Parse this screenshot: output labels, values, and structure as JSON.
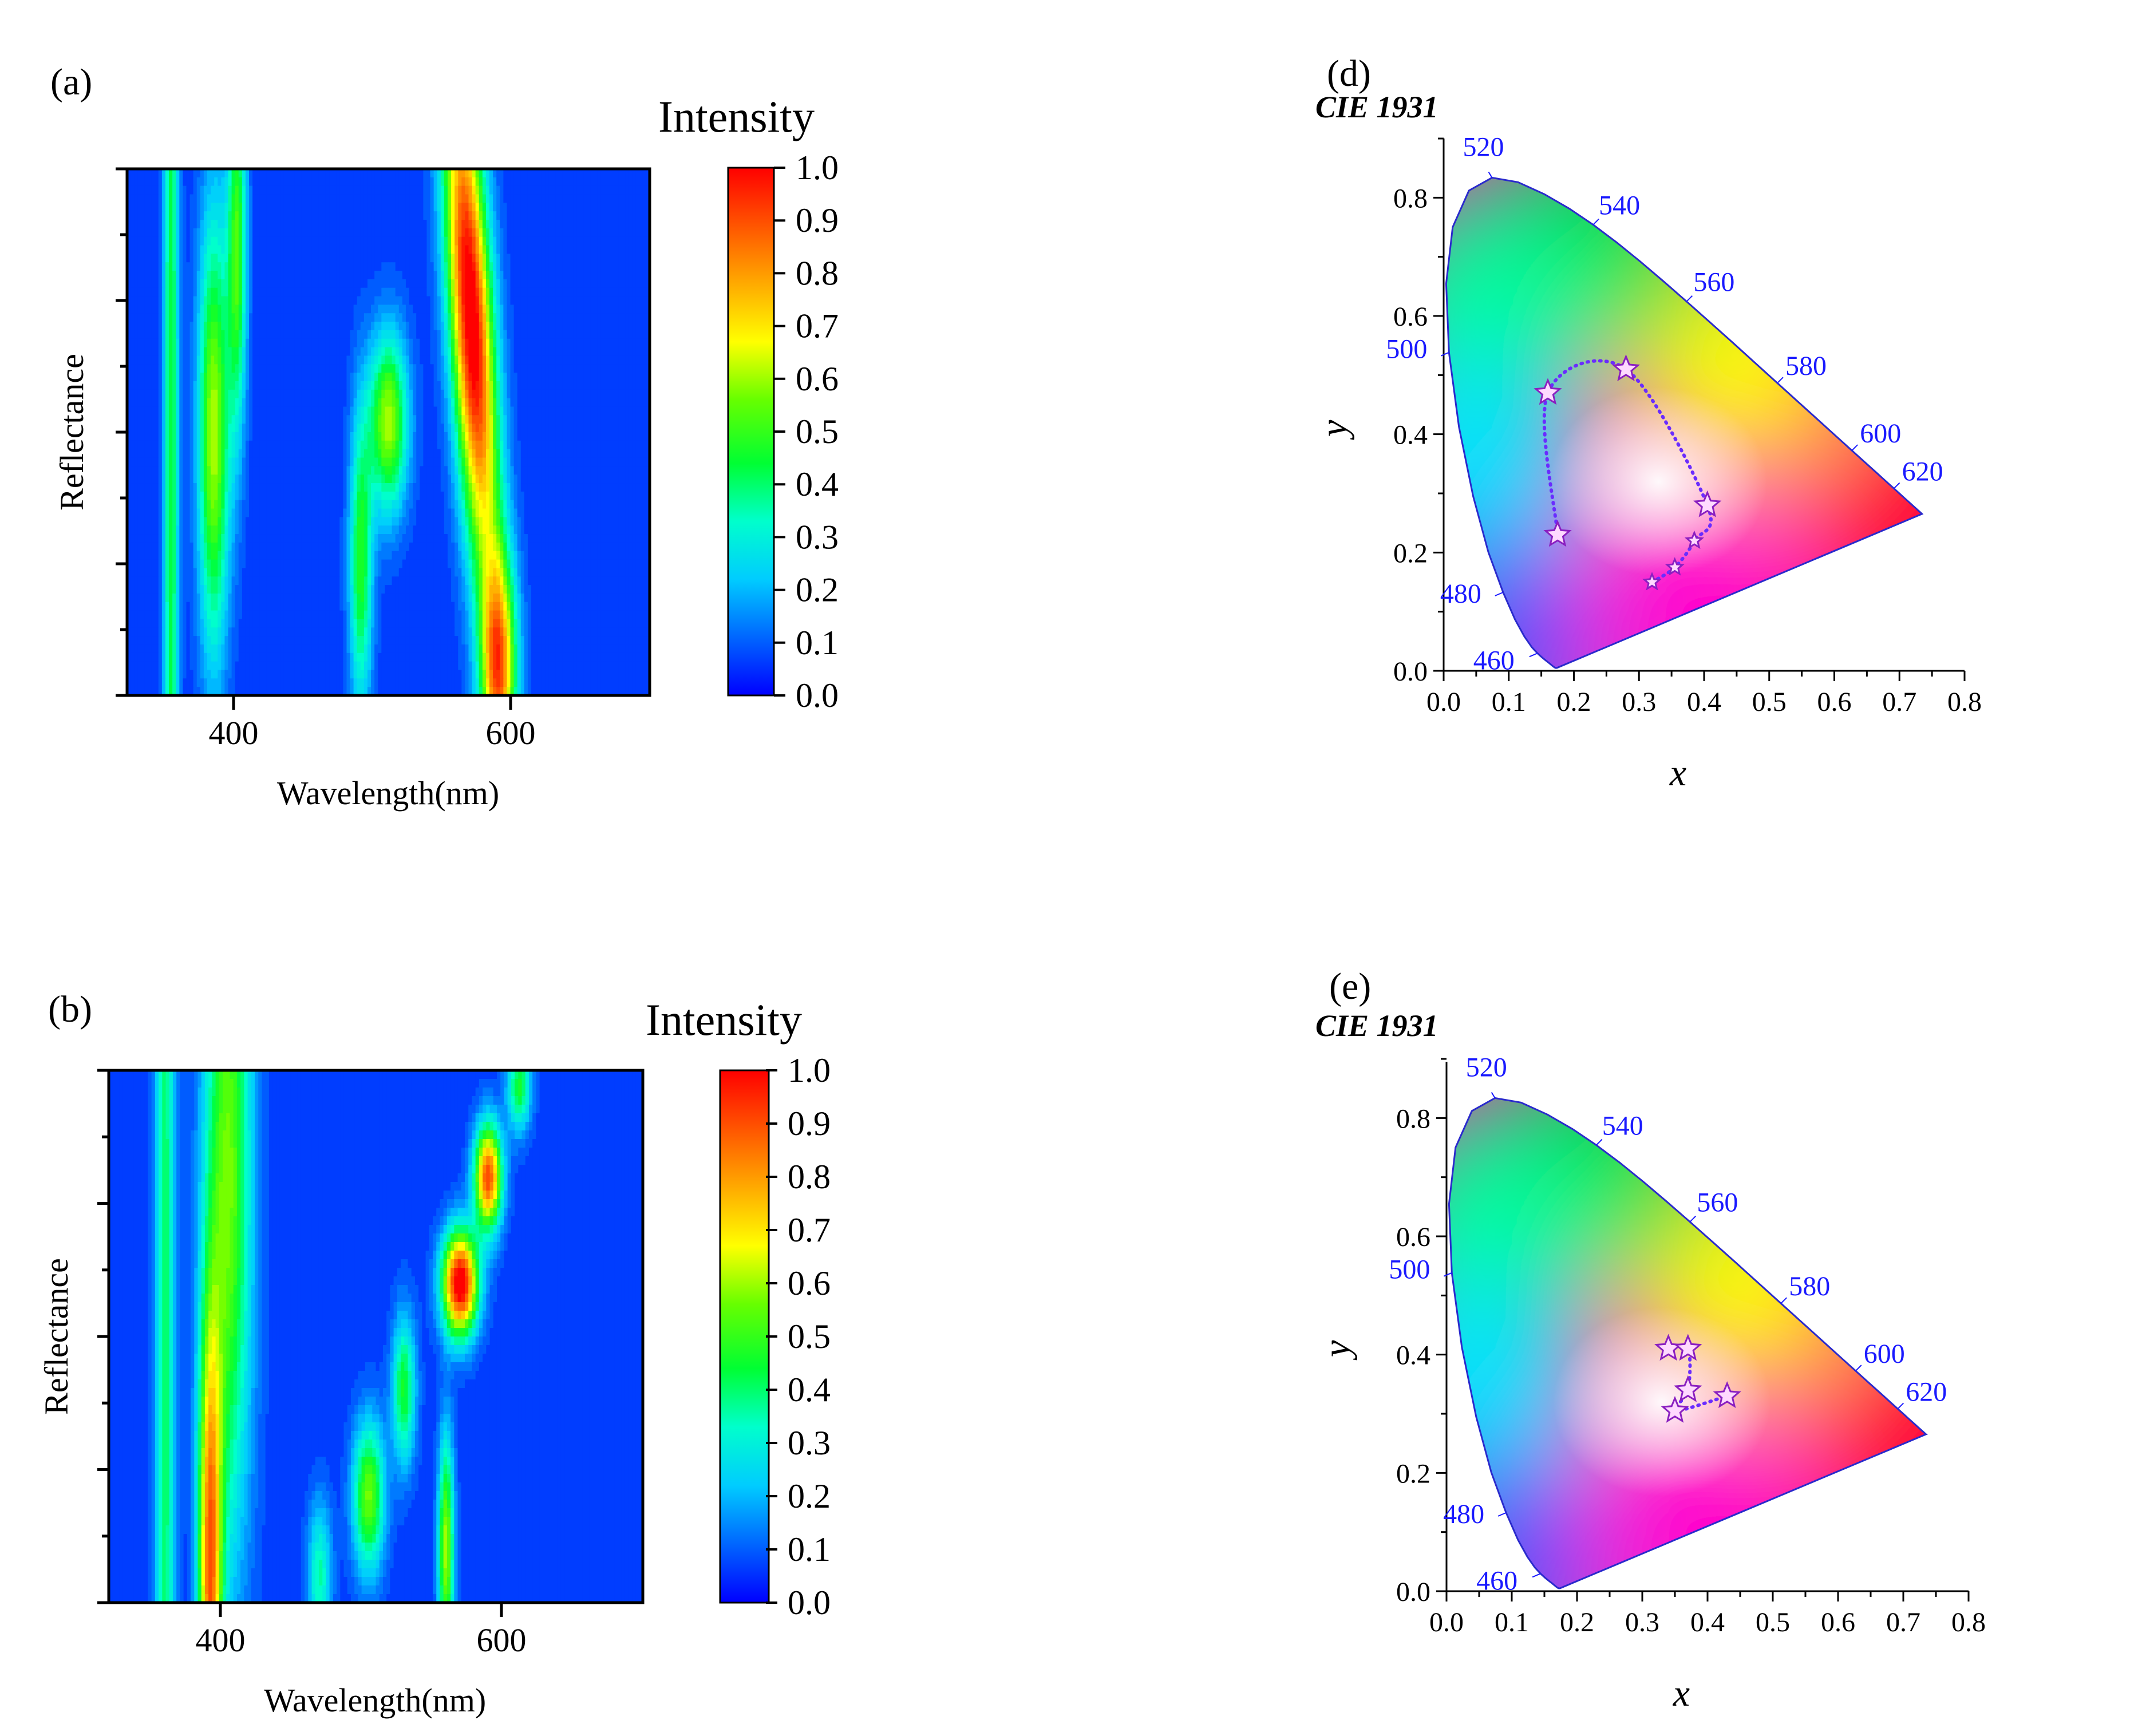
{
  "colors": {
    "map_stops": [
      "#0000ff",
      "#0066ff",
      "#00ccff",
      "#00ffcc",
      "#00ff33",
      "#66ff00",
      "#ffff00",
      "#ffaa00",
      "#ff5500",
      "#ff0000"
    ],
    "wavelength_label": "#1a1aff",
    "locus_path": "#6a2cff",
    "star_fill": "#ffd9ff",
    "axis": "#000000"
  },
  "chart_data": [
    {
      "type": "heatmap",
      "panel": "(a)",
      "xlabel": "Wavelength(nm)",
      "ylabel": "Reflectance",
      "xlim": [
        320,
        700
      ],
      "xticks": [
        "400",
        "600"
      ],
      "colorbar": {
        "title": "Intensity",
        "min": 0.0,
        "max": 1.0,
        "ticks": [
          "0.0",
          "0.1",
          "0.2",
          "0.3",
          "0.4",
          "0.5",
          "0.6",
          "0.7",
          "0.8",
          "0.9",
          "1.0"
        ]
      },
      "features": [
        {
          "wavelength": 352,
          "peak": 0.38,
          "width": 4,
          "y_center": 0.5,
          "y_spread": 2.0
        },
        {
          "wavelength": 383,
          "peak": 0.55,
          "width": 8,
          "y_center": 0.5,
          "y_spread": 0.3
        },
        {
          "wavelength": 400,
          "peak": 0.45,
          "width": 5,
          "y_center": 0.85,
          "y_spread": 0.25
        },
        {
          "wavelength": 490,
          "peak": 0.42,
          "width": 6,
          "y_center": 0.25,
          "y_spread": 0.2
        },
        {
          "wavelength": 510,
          "peak": 0.55,
          "width": 10,
          "y_center": 0.52,
          "y_spread": 0.12
        },
        {
          "wavelength": 575,
          "peak": 1.0,
          "width": 11,
          "y_center": 0.72,
          "y_spread": 0.35,
          "slope": -22
        },
        {
          "wavelength": 590,
          "peak": 0.75,
          "width": 9,
          "y_center": 0.05,
          "y_spread": 0.15
        }
      ]
    },
    {
      "type": "heatmap",
      "panel": "(b)",
      "xlabel": "Wavelength(nm)",
      "ylabel": "Reflectance",
      "xlim": [
        320,
        700
      ],
      "xticks": [
        "400",
        "600"
      ],
      "colorbar": {
        "title": "Intensity",
        "min": 0.0,
        "max": 1.0,
        "ticks": [
          "0.0",
          "0.1",
          "0.2",
          "0.3",
          "0.4",
          "0.5",
          "0.6",
          "0.7",
          "0.8",
          "0.9",
          "1.0"
        ]
      },
      "features": [
        {
          "wavelength": 360,
          "peak": 0.35,
          "width": 5,
          "y_center": 0.5,
          "y_spread": 2.0
        },
        {
          "wavelength": 392,
          "peak": 0.75,
          "width": 6,
          "y_center": 0.05,
          "y_spread": 0.35
        },
        {
          "wavelength": 405,
          "peak": 0.5,
          "width": 12,
          "y_center": 0.8,
          "y_spread": 0.5
        },
        {
          "wavelength": 470,
          "peak": 0.3,
          "width": 6,
          "y_center": 0.05,
          "y_spread": 0.1
        },
        {
          "wavelength": 505,
          "peak": 0.5,
          "width": 8,
          "y_center": 0.2,
          "y_spread": 0.1
        },
        {
          "wavelength": 530,
          "peak": 0.4,
          "width": 6,
          "y_center": 0.4,
          "y_spread": 0.1
        },
        {
          "wavelength": 560,
          "peak": 0.55,
          "width": 4,
          "y_center": 0.1,
          "y_spread": 0.15
        },
        {
          "wavelength": 570,
          "peak": 1.0,
          "width": 9,
          "y_center": 0.6,
          "y_spread": 0.07
        },
        {
          "wavelength": 590,
          "peak": 0.85,
          "width": 7,
          "y_center": 0.8,
          "y_spread": 0.07
        },
        {
          "wavelength": 612,
          "peak": 0.4,
          "width": 6,
          "y_center": 0.97,
          "y_spread": 0.06
        }
      ]
    },
    {
      "type": "scatter",
      "panel": "(d)",
      "subtitle": "CIE 1931",
      "xlabel": "x",
      "ylabel": "y",
      "xlim": [
        0.0,
        0.8
      ],
      "ylim": [
        0.0,
        0.9
      ],
      "xticks": [
        "0.0",
        "0.1",
        "0.2",
        "0.3",
        "0.4",
        "0.5",
        "0.6",
        "0.7",
        "0.8"
      ],
      "yticks": [
        "0.0",
        "0.2",
        "0.4",
        "0.6",
        "0.8"
      ],
      "wavelength_labels": [
        "460",
        "480",
        "500",
        "520",
        "540",
        "560",
        "580",
        "600",
        "620"
      ],
      "points": [
        {
          "x": 0.175,
          "y": 0.23
        },
        {
          "x": 0.16,
          "y": 0.47
        },
        {
          "x": 0.28,
          "y": 0.51
        },
        {
          "x": 0.405,
          "y": 0.28
        },
        {
          "x": 0.385,
          "y": 0.22
        },
        {
          "x": 0.355,
          "y": 0.175
        },
        {
          "x": 0.32,
          "y": 0.15
        }
      ]
    },
    {
      "type": "scatter",
      "panel": "(e)",
      "subtitle": "CIE 1931",
      "xlabel": "x",
      "ylabel": "y",
      "xlim": [
        0.0,
        0.8
      ],
      "ylim": [
        0.0,
        0.9
      ],
      "xticks": [
        "0.0",
        "0.1",
        "0.2",
        "0.3",
        "0.4",
        "0.5",
        "0.6",
        "0.7",
        "0.8"
      ],
      "yticks": [
        "0.0",
        "0.2",
        "0.4",
        "0.6",
        "0.8"
      ],
      "wavelength_labels": [
        "460",
        "480",
        "500",
        "520",
        "540",
        "560",
        "580",
        "600",
        "620"
      ],
      "points": [
        {
          "x": 0.34,
          "y": 0.41
        },
        {
          "x": 0.37,
          "y": 0.41
        },
        {
          "x": 0.37,
          "y": 0.34
        },
        {
          "x": 0.35,
          "y": 0.305
        },
        {
          "x": 0.43,
          "y": 0.33
        }
      ]
    }
  ]
}
